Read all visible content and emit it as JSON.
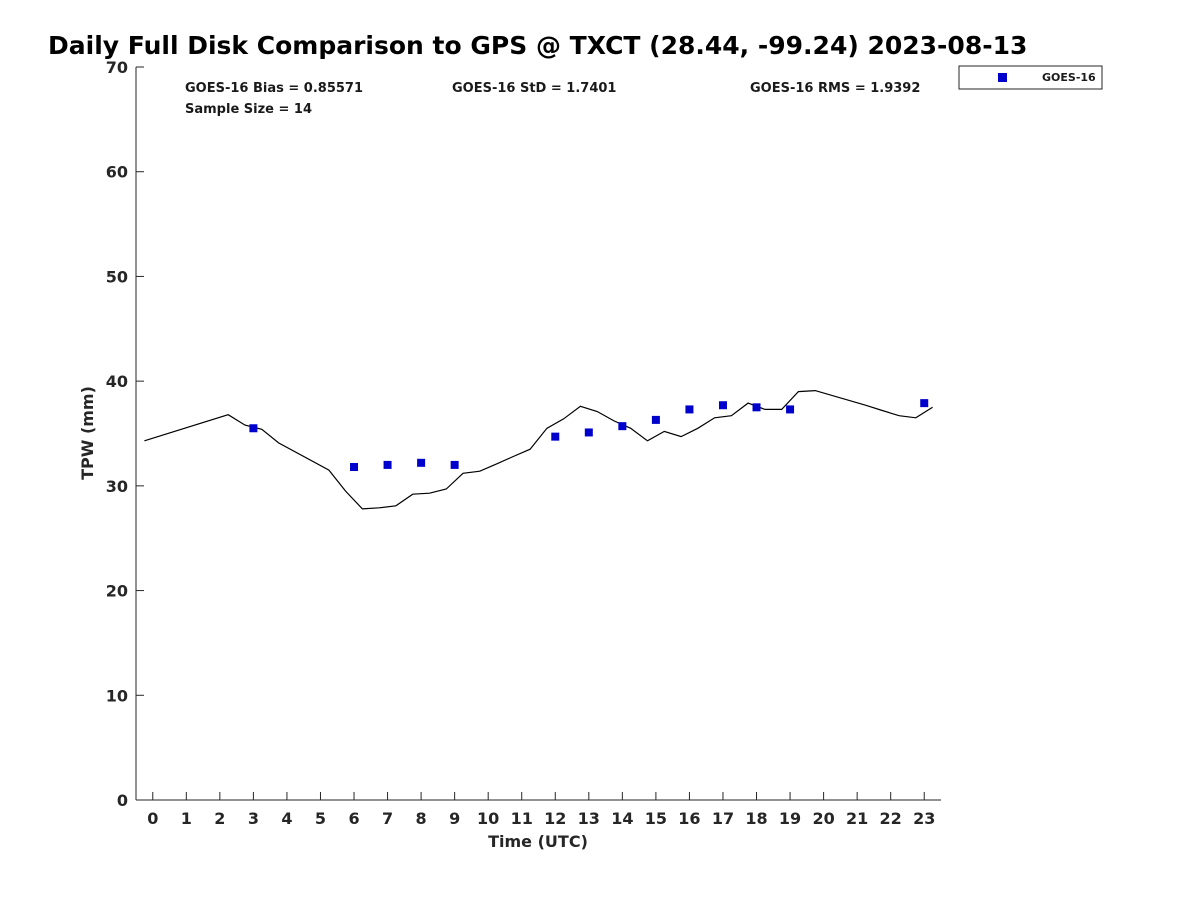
{
  "chart_data": {
    "type": "scatter",
    "title": "Daily Full Disk Comparison to GPS @ TXCT (28.44, -99.24) 2023-08-13",
    "xlabel": "Time (UTC)",
    "ylabel": "TPW (mm)",
    "xlim": [
      -0.5,
      23.5
    ],
    "ylim": [
      0,
      70
    ],
    "xticks": [
      0,
      1,
      2,
      3,
      4,
      5,
      6,
      7,
      8,
      9,
      10,
      11,
      12,
      13,
      14,
      15,
      16,
      17,
      18,
      19,
      20,
      21,
      22,
      23
    ],
    "yticks": [
      0,
      10,
      20,
      30,
      40,
      50,
      60,
      70
    ],
    "grid": false,
    "legend_position": "top-right",
    "stats": {
      "bias": "GOES-16 Bias = 0.85571",
      "std": "GOES-16 StD = 1.7401",
      "rms": "GOES-16 RMS = 1.9392",
      "sample": "Sample Size = 14"
    },
    "series": [
      {
        "name": "GOES-16",
        "kind": "scatter",
        "color": "#0000cc",
        "x": [
          3,
          6,
          7,
          8,
          9,
          12,
          13,
          14,
          15,
          16,
          17,
          18,
          19,
          23
        ],
        "y": [
          35.5,
          31.8,
          32.0,
          32.2,
          32.0,
          34.7,
          35.1,
          35.7,
          36.3,
          37.3,
          37.7,
          37.5,
          37.3,
          37.9
        ]
      },
      {
        "kind": "line",
        "color": "#000000",
        "x": [
          -0.25,
          2.25,
          2.75,
          3.25,
          3.75,
          5.25,
          5.75,
          6.25,
          6.75,
          7.25,
          7.75,
          8.25,
          8.75,
          9.25,
          9.75,
          10.25,
          10.75,
          11.25,
          11.75,
          12.25,
          12.75,
          13.25,
          13.75,
          14.25,
          14.75,
          15.25,
          15.75,
          16.25,
          16.75,
          17.25,
          17.75,
          18.25,
          18.75,
          19.25,
          19.75,
          21.25,
          21.75,
          22.25,
          22.75,
          23.25
        ],
        "y": [
          34.3,
          36.8,
          35.8,
          35.4,
          34.1,
          31.5,
          29.5,
          27.8,
          27.9,
          28.1,
          29.2,
          29.3,
          29.7,
          31.2,
          31.4,
          32.1,
          32.8,
          33.5,
          35.5,
          36.4,
          37.6,
          37.1,
          36.2,
          35.5,
          34.3,
          35.2,
          34.7,
          35.5,
          36.5,
          36.7,
          37.9,
          37.3,
          37.3,
          39.0,
          39.1,
          37.7,
          37.2,
          36.7,
          36.5,
          37.5
        ]
      }
    ]
  }
}
